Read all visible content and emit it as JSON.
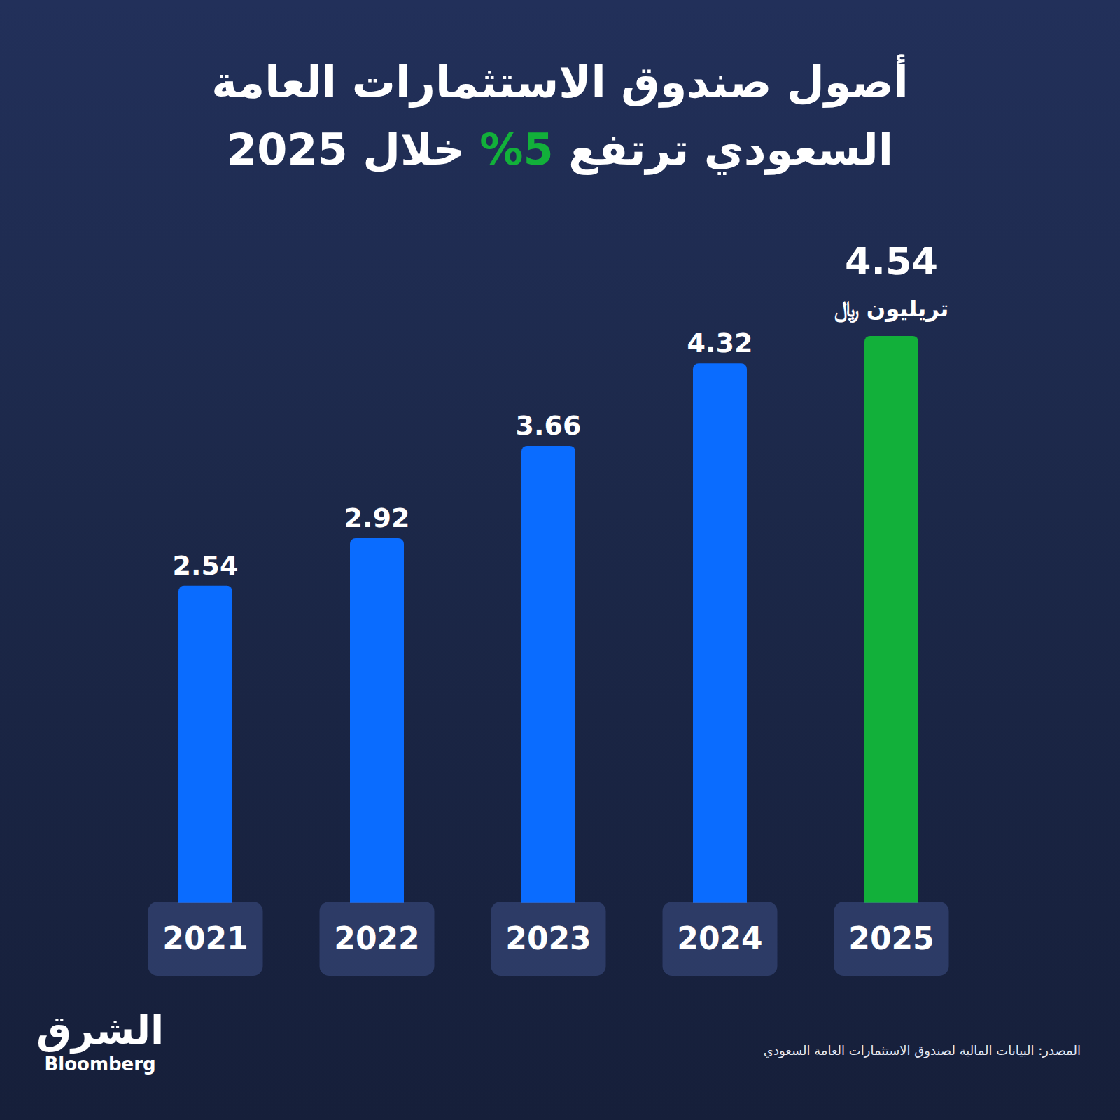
{
  "chart_data": {
    "type": "bar",
    "title": [
      "أصول صندوق الاستثمارات العامة",
      "السعودي ترتفع 5% خلال 2025"
    ],
    "categories": [
      "2021",
      "2022",
      "2023",
      "2024",
      "2025"
    ],
    "values": [
      2.54,
      2.92,
      3.66,
      4.32,
      4.54
    ],
    "colors": [
      "#0a6cff",
      "#0a6cff",
      "#0a6cff",
      "#0a6cff",
      "#12b03a"
    ],
    "unit": "تريليون ﷼",
    "ylim": [
      0,
      5.1
    ],
    "grid": false,
    "legend": false,
    "data_labels": true,
    "tick_labels": "x",
    "source": "المصدر: البيانات المالية لصندوق الاستثمارات العامة السعودي",
    "logo": [
      "الشرق",
      "Bloomberg"
    ]
  }
}
